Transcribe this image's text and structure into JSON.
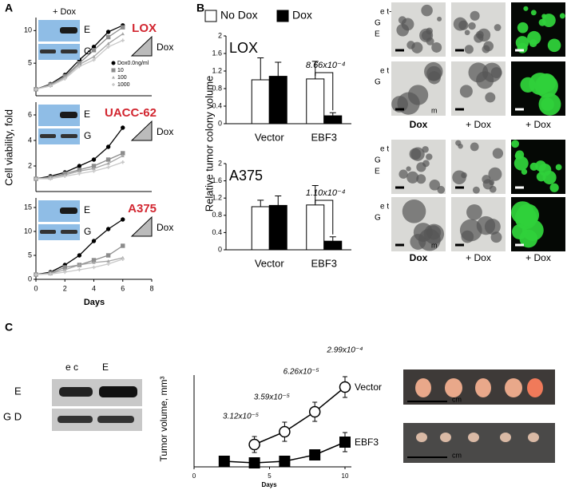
{
  "panel_labels": [
    "A",
    "B",
    "C"
  ],
  "chart_data": [
    {
      "type": "line",
      "title": "LOX",
      "header": "+ Dox",
      "blot_labels": [
        "E",
        "G"
      ],
      "side_label": "Dox",
      "x": [
        0,
        1,
        2,
        3,
        4,
        5,
        6
      ],
      "xlim": [
        0,
        8
      ],
      "ylim": [
        0,
        12
      ],
      "yticks": [
        5,
        10
      ],
      "legend": true,
      "series": [
        {
          "name": "Dox0.0ng/ml",
          "color": "#000000",
          "marker": "circle",
          "values": [
            1,
            1.8,
            3.2,
            5.5,
            7.5,
            9.8,
            10.8
          ]
        },
        {
          "name": "10",
          "color": "#8c8c8c",
          "marker": "square",
          "values": [
            1,
            1.7,
            3,
            5,
            7,
            9,
            10.5
          ]
        },
        {
          "name": "100",
          "color": "#a6a6a6",
          "marker": "triangle",
          "values": [
            1,
            1.6,
            2.8,
            4.8,
            6,
            8,
            9.5
          ]
        },
        {
          "name": "1000",
          "color": "#c8c8c8",
          "marker": "cross",
          "values": [
            1,
            1.5,
            2.6,
            4.5,
            5.5,
            7.5,
            8.5
          ]
        }
      ]
    },
    {
      "type": "line",
      "title": "UACC-62",
      "blot_labels": [
        "E",
        "G"
      ],
      "side_label": "Dox",
      "ylabel": "Cell viability, fold",
      "x": [
        0,
        1,
        2,
        3,
        4,
        5,
        6
      ],
      "xlim": [
        0,
        8
      ],
      "ylim": [
        0,
        7
      ],
      "yticks": [
        2,
        4,
        6
      ],
      "series": [
        {
          "color": "#000000",
          "marker": "circle",
          "values": [
            1,
            1.2,
            1.5,
            2,
            2.5,
            3.5,
            5
          ]
        },
        {
          "color": "#8c8c8c",
          "marker": "square",
          "values": [
            1,
            1.1,
            1.4,
            1.7,
            2,
            2.5,
            3
          ]
        },
        {
          "color": "#a6a6a6",
          "marker": "triangle",
          "values": [
            1,
            1.1,
            1.3,
            1.6,
            1.8,
            2.2,
            2.8
          ]
        },
        {
          "color": "#c8c8c8",
          "marker": "cross",
          "values": [
            1,
            1,
            1.2,
            1.4,
            1.6,
            1.9,
            2.3
          ]
        }
      ]
    },
    {
      "type": "line",
      "title": "A375",
      "blot_labels": [
        "E",
        "G"
      ],
      "side_label": "Dox",
      "xlabel": "Days",
      "x": [
        0,
        1,
        2,
        3,
        4,
        5,
        6
      ],
      "xlim": [
        0,
        8
      ],
      "ylim": [
        0,
        17
      ],
      "yticks": [
        0,
        5,
        10,
        15
      ],
      "xticks": [
        0,
        2,
        4,
        6,
        8
      ],
      "series": [
        {
          "color": "#000000",
          "marker": "circle",
          "values": [
            1,
            1.5,
            3,
            5,
            8,
            10.5,
            12.5
          ]
        },
        {
          "color": "#8c8c8c",
          "marker": "square",
          "values": [
            1,
            1.3,
            2.5,
            3,
            4,
            5,
            7
          ]
        },
        {
          "color": "#a6a6a6",
          "marker": "triangle",
          "values": [
            1,
            1.2,
            2,
            3,
            3.5,
            3.8,
            4.5
          ]
        },
        {
          "color": "#c8c8c8",
          "marker": "cross",
          "values": [
            1,
            1.1,
            1.5,
            2,
            2.5,
            3.2,
            4.2
          ]
        }
      ]
    },
    {
      "type": "bar",
      "title": "LOX",
      "ylabel": "Relative tumor colony volume",
      "legend": true,
      "categories": [
        "Vector",
        "EBF3"
      ],
      "ylim": [
        0,
        2
      ],
      "yticks": [
        0,
        0.4,
        0.8,
        1.2,
        1.6,
        2
      ],
      "annotation": "8.66x10⁻⁴",
      "series": [
        {
          "name": "No Dox",
          "color": "#ffffff",
          "values": [
            1.0,
            1.02
          ],
          "errors": [
            0.5,
            0.4
          ]
        },
        {
          "name": "Dox",
          "color": "#000000",
          "values": [
            1.08,
            0.18
          ],
          "errors": [
            0.32,
            0.07
          ]
        }
      ]
    },
    {
      "type": "bar",
      "title": "A375",
      "categories": [
        "Vector",
        "EBF3"
      ],
      "ylim": [
        0,
        2
      ],
      "yticks": [
        0,
        0.4,
        0.8,
        1.2,
        1.6,
        2
      ],
      "annotation": "1.10x10⁻⁴",
      "series": [
        {
          "color": "#ffffff",
          "values": [
            1.0,
            1.04
          ],
          "errors": [
            0.15,
            0.45
          ]
        },
        {
          "color": "#000000",
          "values": [
            1.03,
            0.2
          ],
          "errors": [
            0.22,
            0.1
          ]
        }
      ]
    },
    {
      "type": "line",
      "ylabel": "Tumor volume, mm³",
      "xlabel": "Days",
      "xlim": [
        0,
        10
      ],
      "ylim": [
        0,
        115
      ],
      "xticks": [
        0,
        5,
        10
      ],
      "annotations": [
        "3.12x10⁻⁵",
        "3.59x10⁻⁵",
        "6.26x10⁻⁵",
        "2.99x10⁻⁴"
      ],
      "series": [
        {
          "name": "Vector",
          "color": "#000000",
          "marker": "circle",
          "marker_fill": "#ffffff",
          "x": [
            4,
            6,
            8,
            10
          ],
          "values": [
            28,
            44,
            69,
            100
          ],
          "errors": [
            10,
            12,
            12,
            13
          ]
        },
        {
          "name": "EBF3",
          "color": "#000000",
          "marker": "square",
          "x": [
            2,
            4,
            6,
            8,
            10
          ],
          "values": [
            7,
            5,
            7,
            15,
            31
          ],
          "errors": [
            2,
            2,
            3,
            6,
            12
          ]
        }
      ]
    }
  ],
  "micrographs": {
    "row_labels": [
      [
        "e t-",
        "G",
        "E"
      ],
      [
        "e t",
        "G"
      ],
      [
        "e t",
        "G",
        "E"
      ],
      [
        "e t",
        "G"
      ]
    ],
    "column_labels": [
      [
        "Dox",
        "+ Dox",
        "+ Dox"
      ],
      [
        "Dox",
        "+ Dox",
        "+ Dox"
      ]
    ],
    "scale_labels": [
      "m",
      "m"
    ]
  },
  "blot_c": {
    "column_labels": [
      "e c",
      "E"
    ],
    "row_labels": [
      "E",
      "G D"
    ]
  },
  "tumor_photos": {
    "scale_labels": [
      "cm",
      "cm"
    ]
  }
}
